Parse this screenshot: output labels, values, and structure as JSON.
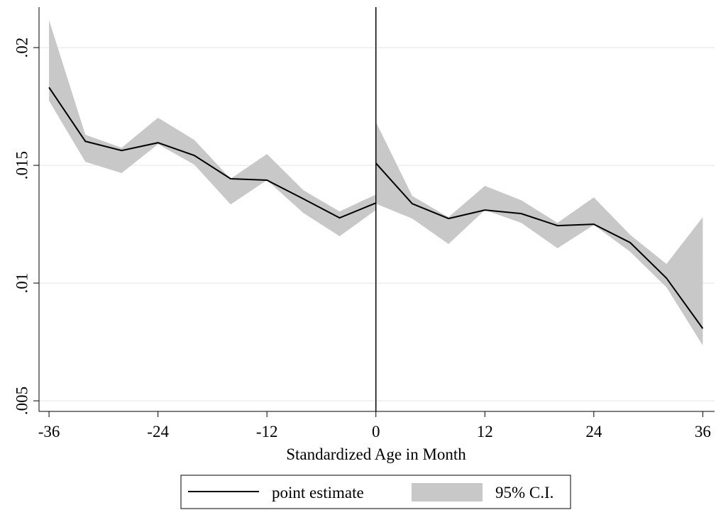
{
  "chart_data": {
    "type": "line",
    "xlabel": "Standardized Age in Month",
    "x": [
      -36,
      -32,
      -28,
      -24,
      -20,
      -16,
      -12,
      -8,
      -4,
      0,
      0,
      0,
      4,
      8,
      12,
      16,
      20,
      24,
      28,
      32,
      36
    ],
    "series": [
      {
        "name": "95% C.I.",
        "kind": "band",
        "color": "#c8c8c8",
        "lower": [
          0.01774,
          0.01515,
          0.01467,
          0.0159,
          0.01503,
          0.01334,
          0.01437,
          0.01298,
          0.01199,
          0.0131,
          null,
          0.01337,
          0.01274,
          0.01166,
          0.0131,
          0.01256,
          0.01148,
          0.01247,
          0.01133,
          0.00982,
          0.00735
        ],
        "upper": [
          0.02117,
          0.0163,
          0.01575,
          0.01702,
          0.01608,
          0.01443,
          0.01548,
          0.01395,
          0.01304,
          0.01376,
          null,
          0.01684,
          0.0137,
          0.0128,
          0.01413,
          0.01352,
          0.01256,
          0.01364,
          0.01205,
          0.01081,
          0.0128
        ]
      },
      {
        "name": "point estimate",
        "kind": "line",
        "color": "#000000",
        "values": [
          0.01831,
          0.01602,
          0.01563,
          0.01596,
          0.01542,
          0.01443,
          0.01437,
          0.01358,
          0.01277,
          0.0134,
          null,
          0.01509,
          0.01337,
          0.01274,
          0.0131,
          0.01295,
          0.01244,
          0.0125,
          0.01172,
          0.01021,
          0.00807
        ]
      }
    ],
    "xline": 0,
    "xlim": [
      -37.1,
      37.3
    ],
    "xticks": [
      -36,
      -24,
      -12,
      0,
      12,
      24,
      36
    ],
    "ylim": [
      0.00455,
      0.02172
    ],
    "yticks": [
      {
        "value": 0.005,
        "label": ".005"
      },
      {
        "value": 0.01,
        "label": ".01"
      },
      {
        "value": 0.015,
        "label": ".015"
      },
      {
        "value": 0.02,
        "label": ".02"
      }
    ],
    "grid": true,
    "legend": "bottom"
  }
}
